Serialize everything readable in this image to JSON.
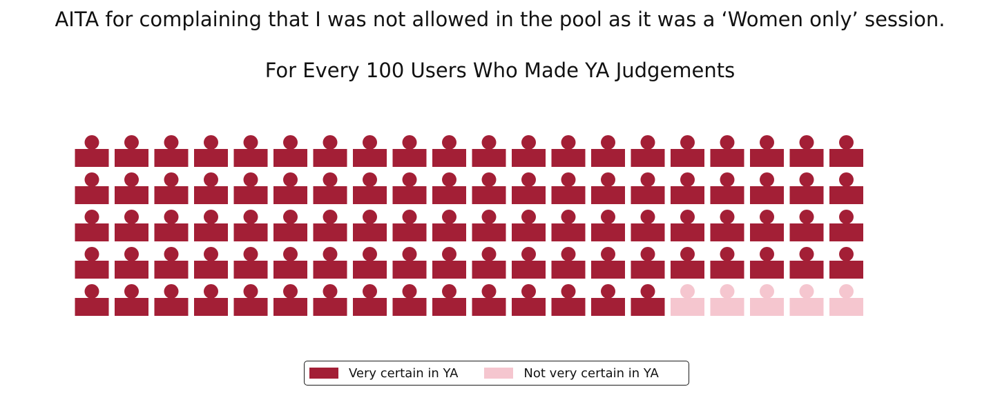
{
  "title": "AITA for complaining that I was not allowed in the pool as it was a ‘Women only’ session.",
  "chart_data": {
    "type": "waffle",
    "subtitle": "For Every 100 Users Who Made YA Judgements",
    "total": 100,
    "rows": 5,
    "columns": 20,
    "icon": "person-icon",
    "categories": [
      {
        "label": "Very certain in YA",
        "value": 95,
        "color": "#a31f36"
      },
      {
        "label": "Not very certain in YA",
        "value": 5,
        "color": "#f5c6cf"
      }
    ],
    "legend_position": "bottom-center"
  }
}
